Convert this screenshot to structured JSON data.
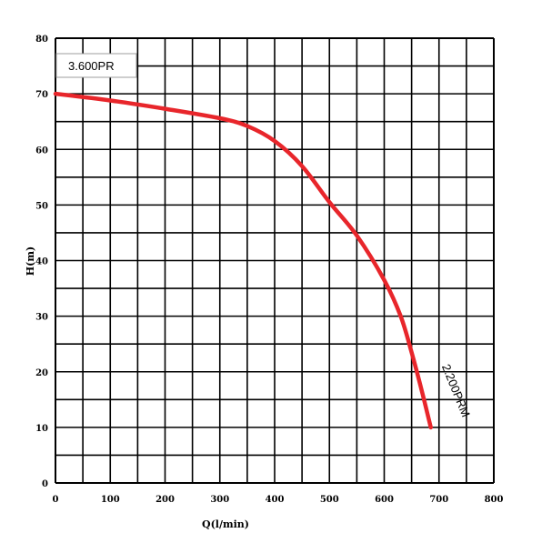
{
  "chart_data": {
    "type": "line",
    "title": "",
    "xlabel": "Q(l/min)",
    "ylabel": "H(m)",
    "xlim": [
      0,
      800
    ],
    "ylim": [
      0,
      80
    ],
    "x_ticks": [
      "0",
      "100",
      "200",
      "300",
      "400",
      "500",
      "600",
      "700",
      "800"
    ],
    "y_ticks": [
      "0",
      "10",
      "20",
      "30",
      "40",
      "50",
      "60",
      "70",
      "80"
    ],
    "grid": true,
    "series": [
      {
        "name": "2.200PRM",
        "color": "#e8262b",
        "x": [
          0,
          100,
          200,
          300,
          350,
          400,
          450,
          500,
          550,
          600,
          630,
          650,
          670,
          685
        ],
        "y": [
          70,
          68.8,
          67.3,
          65.6,
          64.2,
          61.5,
          57,
          50.5,
          44.5,
          36.5,
          30,
          23.5,
          16,
          10
        ]
      }
    ],
    "annotations": [
      {
        "text": "3.600PR"
      }
    ]
  }
}
